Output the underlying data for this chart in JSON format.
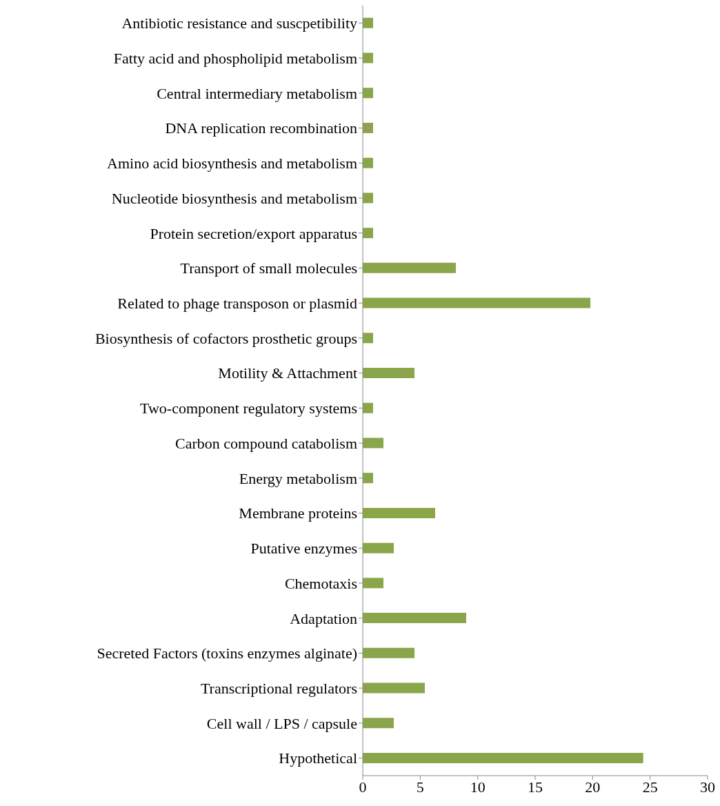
{
  "chart_data": {
    "type": "bar",
    "orientation": "horizontal",
    "categories": [
      "Antibiotic resistance and suscpetibility",
      "Fatty acid and phospholipid metabolism",
      "Central intermediary metabolism",
      "DNA replication recombination",
      "Amino acid biosynthesis and metabolism",
      "Nucleotide biosynthesis and metabolism",
      "Protein secretion/export apparatus",
      "Transport of small molecules",
      "Related to phage transposon or plasmid",
      "Biosynthesis of cofactors prosthetic groups",
      "Motility & Attachment",
      "Two-component regulatory systems",
      "Carbon compound catabolism",
      "Energy metabolism",
      "Membrane proteins",
      "Putative enzymes",
      "Chemotaxis",
      "Adaptation",
      "Secreted Factors (toxins enzymes alginate)",
      "Transcriptional regulators",
      "Cell wall / LPS / capsule",
      "Hypothetical"
    ],
    "values": [
      0.9,
      0.9,
      0.9,
      0.9,
      0.9,
      0.9,
      0.9,
      8.1,
      19.8,
      0.9,
      4.5,
      0.9,
      1.8,
      0.9,
      6.3,
      2.7,
      1.8,
      9.0,
      4.5,
      5.4,
      2.7,
      24.4
    ],
    "color": "#8ba54a",
    "xlim": [
      0,
      30
    ],
    "xticks": [
      0,
      5,
      10,
      15,
      20,
      25,
      30
    ],
    "grid": false,
    "legend": false
  }
}
